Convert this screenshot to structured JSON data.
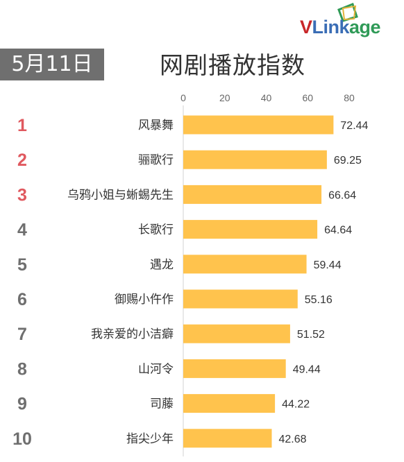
{
  "header": {
    "date": "5月11日",
    "title": "网剧播放指数",
    "logo": {
      "v": "V",
      "link": "Link",
      "age": "age"
    }
  },
  "colors": {
    "bar": "#ffc34d",
    "rank_top": "#e0595f",
    "rank_rest": "#6f6f6f",
    "badge": "#6f6f6f"
  },
  "chart_data": {
    "type": "bar",
    "orientation": "horizontal",
    "title": "网剧播放指数",
    "ranks": [
      "1",
      "2",
      "3",
      "4",
      "5",
      "6",
      "7",
      "8",
      "9",
      "10"
    ],
    "categories": [
      "风暴舞",
      "骊歌行",
      "乌鸦小姐与蜥蜴先生",
      "长歌行",
      "遇龙",
      "御赐小仵作",
      "我亲爱的小洁癖",
      "山河令",
      "司藤",
      "指尖少年"
    ],
    "values": [
      72.44,
      69.25,
      66.64,
      64.64,
      59.44,
      55.16,
      51.52,
      49.44,
      44.22,
      42.68
    ],
    "value_labels": [
      "72.44",
      "69.25",
      "66.64",
      "64.64",
      "59.44",
      "55.16",
      "51.52",
      "49.44",
      "44.22",
      "42.68"
    ],
    "xticks": [
      "0",
      "20",
      "40",
      "60",
      "80"
    ],
    "xlim": [
      0,
      80
    ],
    "xaxis_position": "top",
    "grid": false,
    "legend": "none"
  }
}
